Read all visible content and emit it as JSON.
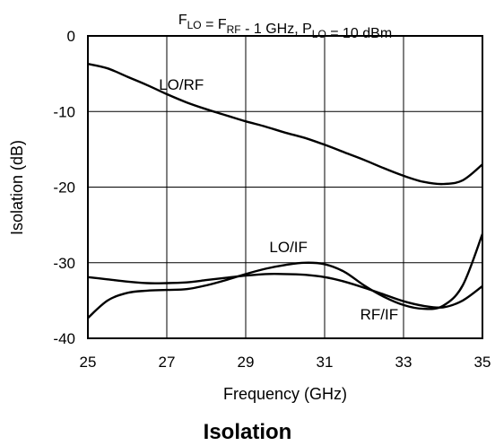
{
  "caption": "Isolation",
  "chart_data": {
    "type": "line",
    "title": {
      "parts": [
        {
          "text": "F",
          "sub": "LO"
        },
        {
          "text": " = F",
          "sub": "RF"
        },
        {
          "text": " - 1 GHz, P",
          "sub": "LO"
        },
        {
          "text": " = 10 dBm",
          "sub": ""
        }
      ]
    },
    "xlabel": "Frequency (GHz)",
    "ylabel": "Isolation (dB)",
    "xlim": [
      25,
      35
    ],
    "ylim": [
      -40,
      0
    ],
    "xticks": [
      25,
      27,
      29,
      31,
      33,
      35
    ],
    "yticks": [
      0,
      -10,
      -20,
      -30,
      -40
    ],
    "grid": true,
    "series": [
      {
        "name": "LO/RF",
        "x": [
          25,
          25.5,
          26,
          26.5,
          27,
          27.5,
          28,
          28.5,
          29,
          29.5,
          30,
          30.5,
          31,
          31.5,
          32,
          32.5,
          33,
          33.5,
          34,
          34.5,
          35
        ],
        "y": [
          -3.7,
          -4.3,
          -5.4,
          -6.5,
          -7.7,
          -8.8,
          -9.7,
          -10.5,
          -11.3,
          -12.0,
          -12.8,
          -13.5,
          -14.4,
          -15.4,
          -16.4,
          -17.5,
          -18.5,
          -19.3,
          -19.6,
          -19.1,
          -17.0
        ]
      },
      {
        "name": "LO/IF",
        "x": [
          25,
          25.5,
          26,
          26.5,
          27,
          27.5,
          28,
          28.5,
          29,
          29.5,
          30,
          30.5,
          31,
          31.5,
          32,
          32.5,
          33,
          33.5,
          34,
          34.5,
          35
        ],
        "y": [
          -37.3,
          -35.0,
          -34.0,
          -33.7,
          -33.6,
          -33.5,
          -33.0,
          -32.3,
          -31.5,
          -30.8,
          -30.3,
          -30.0,
          -30.2,
          -31.2,
          -33.0,
          -34.5,
          -35.6,
          -36.1,
          -35.7,
          -33.0,
          -26.2
        ]
      },
      {
        "name": "RF/IF",
        "x": [
          25,
          25.5,
          26,
          26.5,
          27,
          27.5,
          28,
          28.5,
          29,
          29.5,
          30,
          30.5,
          31,
          31.5,
          32,
          32.5,
          33,
          33.5,
          34,
          34.5,
          35
        ],
        "y": [
          -31.9,
          -32.2,
          -32.5,
          -32.7,
          -32.7,
          -32.6,
          -32.3,
          -32.0,
          -31.7,
          -31.5,
          -31.5,
          -31.6,
          -31.9,
          -32.5,
          -33.3,
          -34.2,
          -35.1,
          -35.7,
          -35.9,
          -35.0,
          -33.1
        ]
      }
    ],
    "annotations": [
      {
        "text": "LO/RF",
        "x": 26.8,
        "y": -6.4
      },
      {
        "text": "LO/IF",
        "x": 29.6,
        "y": -27.9
      },
      {
        "text": "RF/IF",
        "x": 31.9,
        "y": -36.8
      }
    ]
  }
}
